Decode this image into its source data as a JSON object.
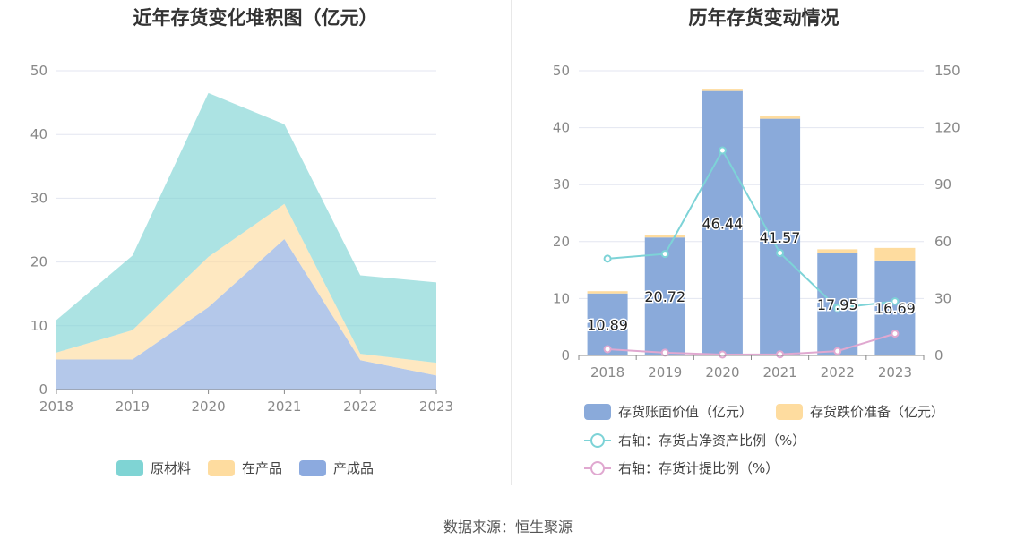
{
  "source_label": "数据来源：恒生聚源",
  "chart_data": [
    {
      "type": "area",
      "title": "近年存货变化堆积图（亿元）",
      "categories": [
        "2018",
        "2019",
        "2020",
        "2021",
        "2022",
        "2023"
      ],
      "ylim": [
        0,
        50
      ],
      "yticks": [
        0,
        10,
        20,
        30,
        40,
        50
      ],
      "grid": true,
      "legend_position": "bottom",
      "series": [
        {
          "name": "原材料",
          "color": "#7fd4d4",
          "values": [
            5.1,
            11.7,
            25.7,
            12.5,
            12.3,
            12.6
          ]
        },
        {
          "name": "在产品",
          "color": "#fedc9f",
          "values": [
            1.1,
            4.6,
            7.9,
            5.5,
            1.0,
            2.0
          ]
        },
        {
          "name": "产成品",
          "color": "#8caadf",
          "values": [
            4.7,
            4.7,
            12.9,
            23.6,
            4.6,
            2.2
          ]
        }
      ],
      "stack_order_bottom_to_top": [
        "产成品",
        "在产品",
        "原材料"
      ]
    },
    {
      "type": "bar",
      "title": "历年存货变动情况",
      "categories": [
        "2018",
        "2019",
        "2020",
        "2021",
        "2022",
        "2023"
      ],
      "ylim": [
        0,
        50
      ],
      "yticks": [
        0,
        10,
        20,
        30,
        40,
        50
      ],
      "y2lim": [
        0,
        150
      ],
      "y2ticks": [
        0,
        30,
        60,
        90,
        120,
        150
      ],
      "grid": true,
      "legend_position": "bottom",
      "bar_series": [
        {
          "name": "存货账面价值（亿元）",
          "color": "#8aaada",
          "values": [
            10.89,
            20.72,
            46.44,
            41.57,
            17.95,
            16.69
          ],
          "labels": [
            "10.89",
            "20.72",
            "46.44",
            "41.57",
            "17.95",
            "16.69"
          ]
        },
        {
          "name": "存货跌价准备（亿元）",
          "color": "#fedc9f",
          "values": [
            0.4,
            0.5,
            0.4,
            0.5,
            0.7,
            2.2
          ]
        }
      ],
      "line_series": [
        {
          "name": "右轴：存货占净资产比例（%）",
          "color": "#7dd3d7",
          "values": [
            51,
            53.5,
            108,
            54,
            25,
            28.5
          ]
        },
        {
          "name": "右轴：存货计提比例（%）",
          "color": "#e0a8d0",
          "values": [
            3.3,
            1.5,
            0.5,
            0.6,
            2.3,
            11.5
          ]
        }
      ]
    }
  ]
}
